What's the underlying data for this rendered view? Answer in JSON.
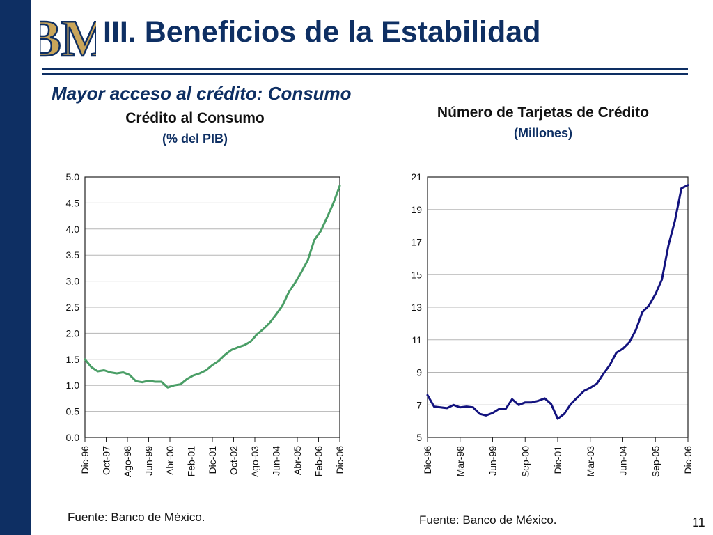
{
  "slide": {
    "title": "III. Beneficios de la Estabilidad",
    "subtitle": "Mayor acceso al crédito: Consumo",
    "page_number": "11",
    "logo_text": "BM",
    "colors": {
      "navy": "#0e2f63",
      "green": "#4a9e66",
      "series_blue": "#12127e",
      "logo_gold": "#c9a55a"
    }
  },
  "chart_data": [
    {
      "type": "line",
      "title": "Crédito al Consumo",
      "subtitle": "(% del PIB)",
      "source": "Fuente: Banco de México.",
      "x_tick_labels": [
        "Dic-96",
        "Oct-97",
        "Ago-98",
        "Jun-99",
        "Abr-00",
        "Feb-01",
        "Dic-01",
        "Oct-02",
        "Ago-03",
        "Jun-04",
        "Abr-05",
        "Feb-06",
        "Dic-06"
      ],
      "ylim": [
        0,
        5
      ],
      "y_ticks": [
        "0.0",
        "0.5",
        "1.0",
        "1.5",
        "2.0",
        "2.5",
        "3.0",
        "3.5",
        "4.0",
        "4.5",
        "5.0"
      ],
      "grid": true,
      "series": [
        {
          "color": "#4a9e66",
          "values": [
            1.5,
            1.35,
            1.27,
            1.29,
            1.25,
            1.23,
            1.25,
            1.2,
            1.08,
            1.06,
            1.09,
            1.07,
            1.07,
            0.96,
            1.0,
            1.02,
            1.12,
            1.19,
            1.23,
            1.29,
            1.39,
            1.47,
            1.59,
            1.68,
            1.73,
            1.77,
            1.84,
            1.98,
            2.08,
            2.2,
            2.36,
            2.53,
            2.79,
            2.97,
            3.18,
            3.41,
            3.79,
            3.96,
            4.22,
            4.5,
            4.83
          ]
        }
      ]
    },
    {
      "type": "line",
      "title": "Número de Tarjetas de Crédito",
      "subtitle": "(Millones)",
      "source": "Fuente: Banco de México.",
      "x_tick_labels": [
        "Dic-96",
        "Mar-98",
        "Jun-99",
        "Sep-00",
        "Dic-01",
        "Mar-03",
        "Jun-04",
        "Sep-05",
        "Dic-06"
      ],
      "ylim": [
        5,
        21
      ],
      "y_ticks": [
        "5",
        "7",
        "9",
        "11",
        "13",
        "15",
        "17",
        "19",
        "21"
      ],
      "grid": true,
      "series": [
        {
          "color": "#12127e",
          "values": [
            7.6,
            6.9,
            6.85,
            6.8,
            7.0,
            6.85,
            6.9,
            6.85,
            6.45,
            6.35,
            6.5,
            6.75,
            6.75,
            7.35,
            7.0,
            7.15,
            7.15,
            7.25,
            7.4,
            7.05,
            6.15,
            6.45,
            7.05,
            7.45,
            7.85,
            8.05,
            8.3,
            8.9,
            9.45,
            10.2,
            10.45,
            10.85,
            11.6,
            12.7,
            13.1,
            13.8,
            14.7,
            16.8,
            18.3,
            20.3,
            20.5
          ]
        }
      ]
    }
  ]
}
